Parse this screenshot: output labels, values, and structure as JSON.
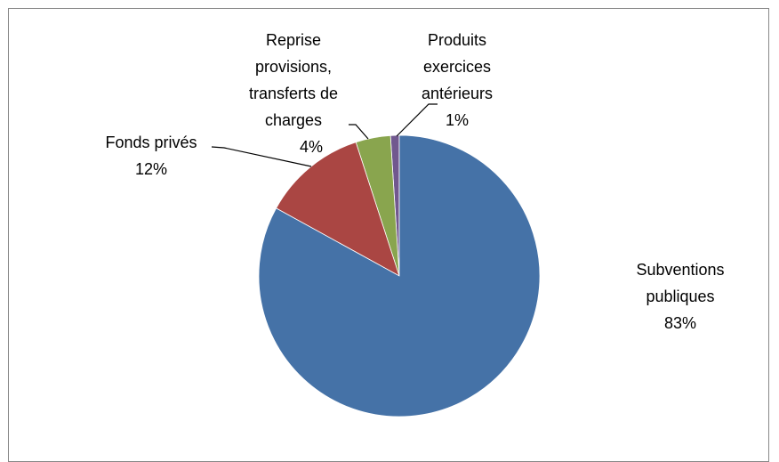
{
  "chart_data": {
    "type": "pie",
    "categories": [
      "Subventions publiques",
      "Fonds privés",
      "Reprise provisions, transferts de charges",
      "Produits exercices antérieurs"
    ],
    "values": [
      83,
      12,
      4,
      1
    ],
    "value_labels": [
      "83%",
      "12%",
      "4%",
      "1%"
    ],
    "colors": [
      "#4572a7",
      "#aa4643",
      "#89a54e",
      "#71588f"
    ]
  }
}
